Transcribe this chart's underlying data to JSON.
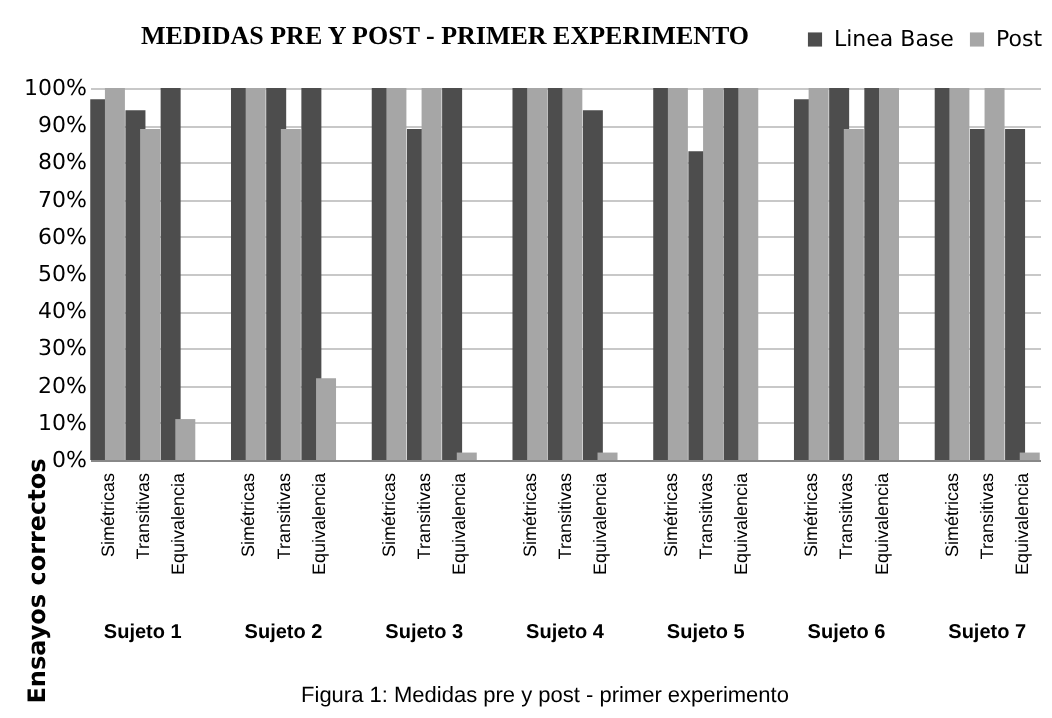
{
  "chart_data": {
    "type": "bar",
    "title": "MEDIDAS PRE Y POST - PRIMER EXPERIMENTO",
    "ylabel": "Ensayos correctos",
    "categories": [
      "Simétricas",
      "Transitivas",
      "Equivalencia",
      null,
      "Simétricas",
      "Transitivas",
      "Equivalencia",
      null,
      "Simétricas",
      "Transitivas",
      "Equivalencia",
      null,
      "Simétricas",
      "Transitivas",
      "Equivalencia",
      null,
      "Simétricas",
      "Transitivas",
      "Equivalencia",
      null,
      "Simétricas",
      "Transitivas",
      "Equivalencia",
      null,
      "Simétricas",
      "Transitivas",
      "Equivalencia"
    ],
    "series": [
      {
        "name": "Linea Base",
        "color": "#4d4d4d",
        "values": [
          97,
          94,
          100,
          null,
          100,
          100,
          100,
          null,
          100,
          89,
          100,
          null,
          100,
          100,
          94,
          null,
          100,
          83,
          100,
          null,
          97,
          100,
          100,
          null,
          100,
          89,
          89
        ]
      },
      {
        "name": "Post",
        "color": "#a6a6a6",
        "values": [
          100,
          89,
          11,
          null,
          100,
          89,
          22,
          null,
          100,
          100,
          2,
          null,
          100,
          100,
          2,
          null,
          100,
          100,
          100,
          null,
          100,
          89,
          100,
          null,
          100,
          100,
          2
        ]
      }
    ],
    "ylim": [
      0,
      100
    ],
    "yticks": [
      {
        "value": 0,
        "label": "0%"
      },
      {
        "value": 10,
        "label": "10%"
      },
      {
        "value": 20,
        "label": "20%"
      },
      {
        "value": 30,
        "label": "30%"
      },
      {
        "value": 40,
        "label": "40%"
      },
      {
        "value": 50,
        "label": "50%"
      },
      {
        "value": 60,
        "label": "60%"
      },
      {
        "value": 70,
        "label": "70%"
      },
      {
        "value": 80,
        "label": "80%"
      },
      {
        "value": 90,
        "label": "90%"
      },
      {
        "value": 100,
        "label": "100%"
      }
    ],
    "grid": "y",
    "legend": "top right",
    "annotations": [
      "Sujeto 1",
      "Sujeto 2",
      "Sujeto 3",
      "Sujeto 4",
      "Sujeto 5",
      "Sujeto 6",
      "Sujeto 7",
      "Figura 1: Medidas pre y post - primer experimento"
    ]
  }
}
